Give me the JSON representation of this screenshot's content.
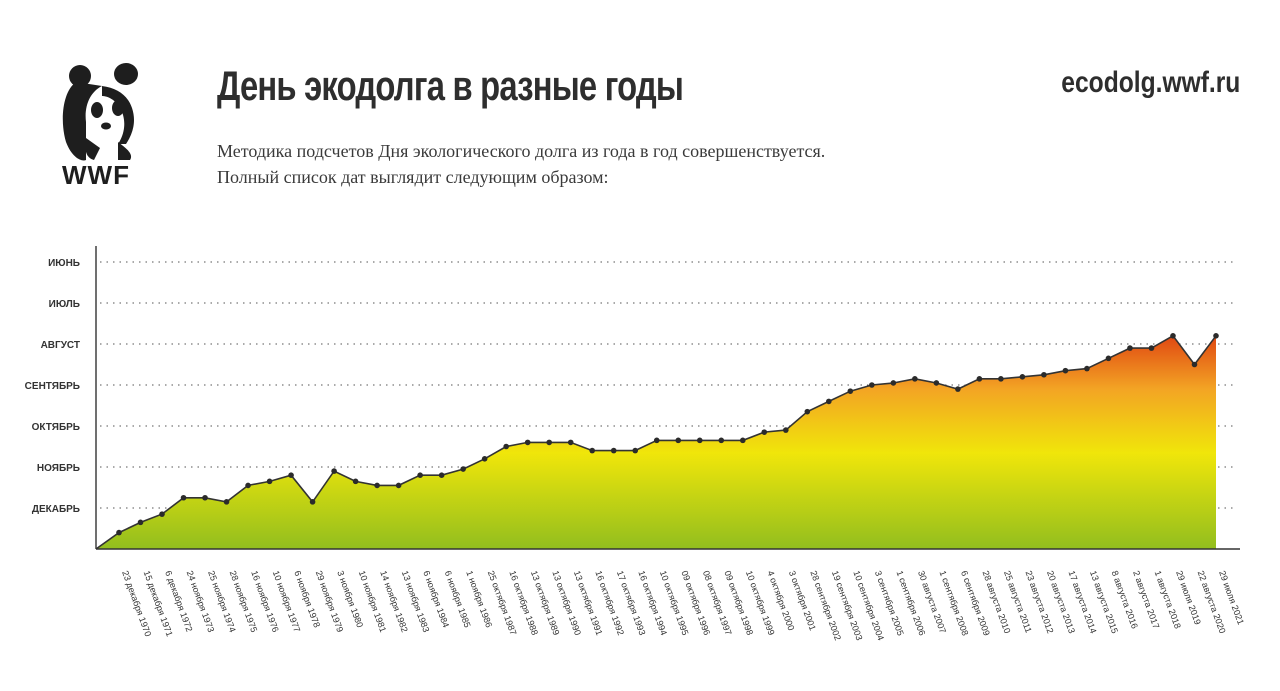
{
  "brand": {
    "logo_text": "WWF",
    "site": "ecodolg.wwf.ru"
  },
  "header": {
    "title": "День экодолга в разные годы",
    "subtitle_line1": "Методика подсчетов Дня экологического долга из года в год совершенствуется.",
    "subtitle_line2": "Полный список дат выглядит следующим образом:"
  },
  "chart_data": {
    "type": "area",
    "title": "День экодолга в разные годы",
    "xlabel": "",
    "ylabel": "",
    "y_ticks": [
      "ИЮНЬ",
      "ИЮЛЬ",
      "АВГУСТ",
      "СЕНТЯБРЬ",
      "ОКТЯБРЬ",
      "НОЯБРЬ",
      "ДЕКАБРЬ"
    ],
    "y_note": "values are month position: 0 = end of year, 1 = ДЕКАБРЬ, 2 = НОЯБРЬ, 3 = ОКТЯБРЬ, 4 = СЕНТЯБРЬ, 5 = АВГУСТ, 6 = ИЮЛЬ, 7 = ИЮНЬ",
    "ylim": [
      0,
      7
    ],
    "grid": "dotted horizontal",
    "fill_gradient": [
      "#9bc41a",
      "#f3e600",
      "#f0a020",
      "#e05010"
    ],
    "points": [
      {
        "label": "23 декабря 1970",
        "value": 0.4
      },
      {
        "label": "15 декабря 1971",
        "value": 0.65
      },
      {
        "label": "6 декабря 1972",
        "value": 0.85
      },
      {
        "label": "24 ноября 1973",
        "value": 1.25
      },
      {
        "label": "25 ноября 1974",
        "value": 1.25
      },
      {
        "label": "28 ноября 1975",
        "value": 1.15
      },
      {
        "label": "16 ноября 1976",
        "value": 1.55
      },
      {
        "label": "10 ноября 1977",
        "value": 1.65
      },
      {
        "label": "6 ноября 1978",
        "value": 1.8
      },
      {
        "label": "29 ноября 1979",
        "value": 1.15
      },
      {
        "label": "3 ноября 1980",
        "value": 1.9
      },
      {
        "label": "10 ноября 1981",
        "value": 1.65
      },
      {
        "label": "14 ноября 1982",
        "value": 1.55
      },
      {
        "label": "13 ноября 1983",
        "value": 1.55
      },
      {
        "label": "6 ноября 1984",
        "value": 1.8
      },
      {
        "label": "6 ноября 1985",
        "value": 1.8
      },
      {
        "label": "1 ноября 1986",
        "value": 1.95
      },
      {
        "label": "25 октября 1987",
        "value": 2.2
      },
      {
        "label": "16 октября 1988",
        "value": 2.5
      },
      {
        "label": "13 октября 1989",
        "value": 2.6
      },
      {
        "label": "13 октября 1990",
        "value": 2.6
      },
      {
        "label": "13 октября 1991",
        "value": 2.6
      },
      {
        "label": "16 октября 1992",
        "value": 2.4
      },
      {
        "label": "17 октября 1993",
        "value": 2.4
      },
      {
        "label": "16 октября 1994",
        "value": 2.4
      },
      {
        "label": "10 октября 1995",
        "value": 2.65
      },
      {
        "label": "09 октября 1996",
        "value": 2.65
      },
      {
        "label": "08 октября 1997",
        "value": 2.65
      },
      {
        "label": "09 октября 1998",
        "value": 2.65
      },
      {
        "label": "10 октября 1999",
        "value": 2.65
      },
      {
        "label": "4 октября 2000",
        "value": 2.85
      },
      {
        "label": "3 октября 2001",
        "value": 2.9
      },
      {
        "label": "28 сентября 2002",
        "value": 3.35
      },
      {
        "label": "19 сентября 2003",
        "value": 3.6
      },
      {
        "label": "10 сентября 2004",
        "value": 3.85
      },
      {
        "label": "3 сентября 2005",
        "value": 4.0
      },
      {
        "label": "1 сентября 2006",
        "value": 4.05
      },
      {
        "label": "30 августа 2007",
        "value": 4.15
      },
      {
        "label": "1 сентября 2008",
        "value": 4.05
      },
      {
        "label": "6 сентября 2009",
        "value": 3.9
      },
      {
        "label": "28 августа 2010",
        "value": 4.15
      },
      {
        "label": "25 августа 2011",
        "value": 4.15
      },
      {
        "label": "23 августа 2012",
        "value": 4.2
      },
      {
        "label": "20 августа 2013",
        "value": 4.25
      },
      {
        "label": "17 августа 2014",
        "value": 4.35
      },
      {
        "label": "13 августа 2015",
        "value": 4.4
      },
      {
        "label": "8 августа 2016",
        "value": 4.65
      },
      {
        "label": "2 августа 2017",
        "value": 4.9
      },
      {
        "label": "1 августа 2018",
        "value": 4.9
      },
      {
        "label": "29 июля 2019",
        "value": 5.2
      },
      {
        "label": "22 августа 2020",
        "value": 4.5
      },
      {
        "label": "29 июля 2021",
        "value": 5.2
      }
    ]
  }
}
